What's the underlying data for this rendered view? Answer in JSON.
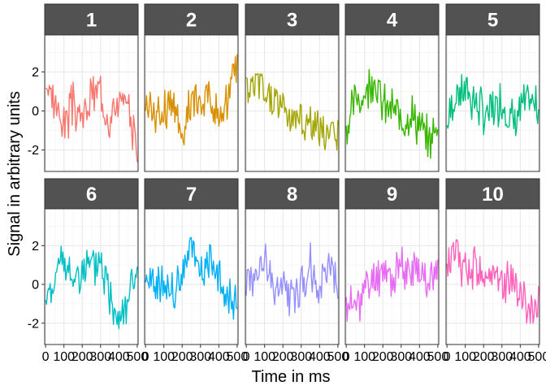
{
  "chart_data": {
    "type": "line",
    "facet_layout": "5 columns x 2 rows, shared axes",
    "xlabel": "Time in ms",
    "ylabel": "Signal in arbitrary units",
    "xlim": [
      -5,
      505
    ],
    "ylim": [
      -3.1,
      3.9
    ],
    "x_ticks": [
      0,
      100,
      200,
      300,
      400,
      500
    ],
    "x_tick_labels": [
      "0",
      "100",
      "200",
      "300",
      "400",
      "500"
    ],
    "y_ticks": [
      -2,
      0,
      2
    ],
    "y_tick_labels": [
      "-2",
      "0",
      "2"
    ],
    "grid": true,
    "legend": "none",
    "panels": [
      {
        "label": "1",
        "color": "#F8766D",
        "ylim_seen": [
          -2.8,
          1.9
        ],
        "x": [
          0,
          50,
          100,
          150,
          200,
          250,
          300,
          350,
          400,
          450,
          500
        ],
        "y": [
          1.3,
          0.4,
          -0.6,
          0.3,
          -0.5,
          0.8,
          1.0,
          -0.2,
          0.5,
          -0.1,
          -1.5
        ]
      },
      {
        "label": "2",
        "color": "#D89000",
        "ylim_seen": [
          -2.8,
          2.9
        ],
        "x": [
          0,
          50,
          100,
          150,
          200,
          250,
          300,
          350,
          400,
          450,
          500
        ],
        "y": [
          0.6,
          -0.3,
          0.2,
          0.5,
          -1.2,
          0.4,
          0.6,
          0.7,
          -0.3,
          0.5,
          2.9
        ]
      },
      {
        "label": "3",
        "color": "#A3A500",
        "ylim_seen": [
          -2.1,
          1.9
        ],
        "x": [
          0,
          50,
          100,
          150,
          200,
          250,
          300,
          350,
          400,
          450,
          500
        ],
        "y": [
          1.0,
          1.4,
          0.9,
          0.5,
          0.3,
          -0.2,
          -0.5,
          -0.7,
          -1.0,
          -1.5,
          -1.2
        ]
      },
      {
        "label": "4",
        "color": "#39B600",
        "ylim_seen": [
          -2.6,
          2.6
        ],
        "x": [
          0,
          50,
          100,
          150,
          200,
          250,
          300,
          350,
          400,
          450,
          500
        ],
        "y": [
          -1.0,
          0.6,
          0.8,
          1.9,
          0.2,
          0.1,
          -0.5,
          -0.1,
          -0.8,
          -1.6,
          -0.8
        ]
      },
      {
        "label": "5",
        "color": "#00BF7D",
        "ylim_seen": [
          -2.3,
          3.5
        ],
        "x": [
          0,
          50,
          100,
          150,
          200,
          250,
          300,
          350,
          400,
          450,
          500
        ],
        "y": [
          -0.5,
          0.8,
          1.2,
          0.5,
          -0.2,
          0.1,
          0.6,
          -0.4,
          0.0,
          0.4,
          0.2
        ]
      },
      {
        "label": "6",
        "color": "#00BFC4",
        "ylim_seen": [
          -2.5,
          2.3
        ],
        "x": [
          0,
          50,
          100,
          150,
          200,
          250,
          300,
          350,
          400,
          450,
          500
        ],
        "y": [
          -1.0,
          0.5,
          1.0,
          0.2,
          0.8,
          0.6,
          1.2,
          -0.6,
          -1.5,
          -0.8,
          1.0
        ]
      },
      {
        "label": "7",
        "color": "#00B0F6",
        "ylim_seen": [
          -1.9,
          2.6
        ],
        "x": [
          0,
          50,
          100,
          150,
          200,
          250,
          300,
          350,
          400,
          450,
          500
        ],
        "y": [
          0.4,
          -0.4,
          0.2,
          -0.5,
          0.8,
          1.8,
          0.6,
          1.5,
          0.3,
          -0.8,
          -1.2
        ]
      },
      {
        "label": "8",
        "color": "#9590FF",
        "ylim_seen": [
          -2.2,
          2.5
        ],
        "x": [
          0,
          50,
          100,
          150,
          200,
          250,
          300,
          350,
          400,
          450,
          500
        ],
        "y": [
          0.2,
          0.6,
          1.1,
          -0.4,
          0.4,
          -0.7,
          0.0,
          1.0,
          -0.5,
          1.2,
          0.2
        ]
      },
      {
        "label": "9",
        "color": "#E76BF3",
        "ylim_seen": [
          -1.9,
          2.2
        ],
        "x": [
          0,
          50,
          100,
          150,
          200,
          250,
          300,
          350,
          400,
          450,
          500
        ],
        "y": [
          -1.2,
          -1.0,
          -0.4,
          0.3,
          0.8,
          0.2,
          1.0,
          0.5,
          0.9,
          0.3,
          0.4
        ]
      },
      {
        "label": "10",
        "color": "#FF62BC",
        "ylim_seen": [
          -2.0,
          2.3
        ],
        "x": [
          0,
          50,
          100,
          150,
          200,
          250,
          300,
          350,
          400,
          450,
          500
        ],
        "y": [
          1.0,
          1.5,
          0.7,
          1.1,
          0.4,
          0.8,
          -0.1,
          0.5,
          -0.6,
          -1.2,
          -1.0
        ]
      }
    ]
  }
}
